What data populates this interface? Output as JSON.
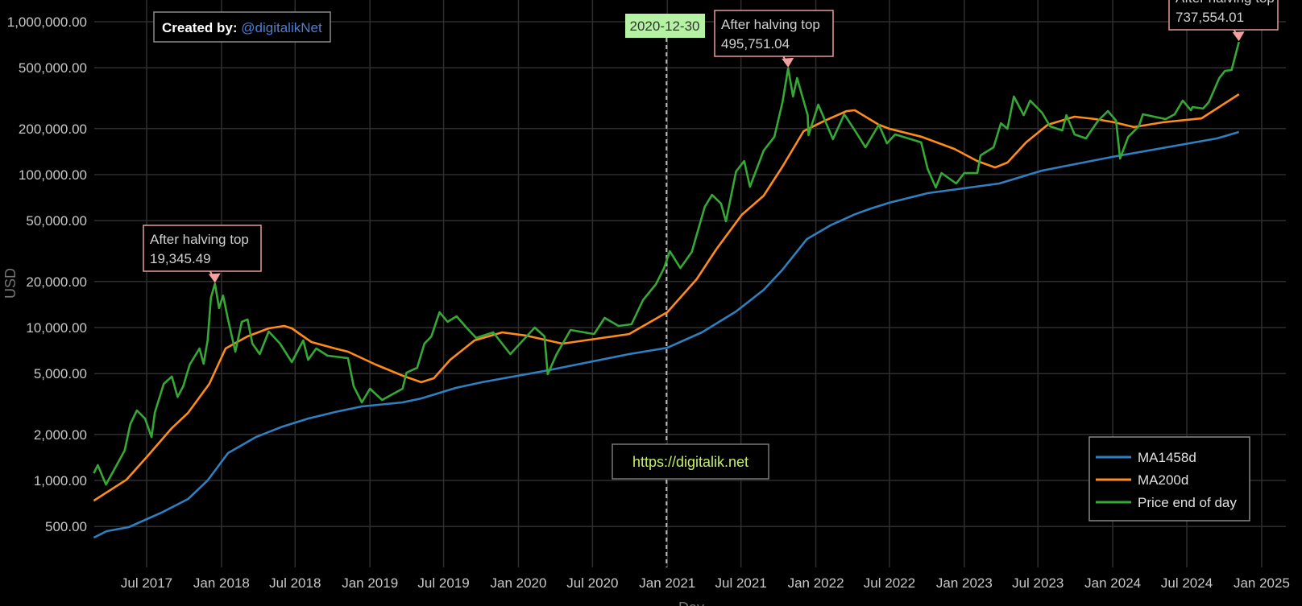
{
  "chart_data": {
    "type": "line",
    "xlabel": "Day",
    "ylabel": "USD",
    "y_scale": "log",
    "ylim": [
      400,
      1000000
    ],
    "xlim": [
      "2017-02-21",
      "2025-01-25"
    ],
    "grid": true,
    "legend_position": "bottom-right",
    "y_ticks": [
      "1,000,000.00",
      "500,000.00",
      "200,000.00",
      "100,000.00",
      "50,000.00",
      "20,000.00",
      "10,000.00",
      "5,000.00",
      "2,000.00",
      "1,000.00",
      "500.00"
    ],
    "y_tick_values": [
      1000000,
      500000,
      200000,
      100000,
      50000,
      20000,
      10000,
      5000,
      2000,
      1000,
      500
    ],
    "x_ticks": [
      "Jul 2017",
      "Jan 2018",
      "Jul 2018",
      "Jan 2019",
      "Jul 2019",
      "Jan 2020",
      "Jul 2020",
      "Jan 2021",
      "Jul 2021",
      "Jan 2022",
      "Jul 2022",
      "Jan 2023",
      "Jul 2023",
      "Jan 2024",
      "Jul 2024",
      "Jan 2025"
    ],
    "x_tick_dates": [
      "2017-07-01",
      "2018-01-01",
      "2018-07-01",
      "2019-01-01",
      "2019-07-01",
      "2020-01-01",
      "2020-07-01",
      "2021-01-01",
      "2021-07-01",
      "2022-01-01",
      "2022-07-01",
      "2023-01-01",
      "2023-07-01",
      "2024-01-01",
      "2024-07-01",
      "2025-01-01"
    ],
    "colors": {
      "MA1458d": "#2f7fc1",
      "MA200d": "#ff8c1a",
      "Price end of day": "#36a836"
    },
    "series": [
      {
        "name": "MA1458d",
        "points": [
          [
            "2017-02-21",
            423
          ],
          [
            "2017-03-25",
            466
          ],
          [
            "2017-05-18",
            495
          ],
          [
            "2017-08-06",
            615
          ],
          [
            "2017-10-11",
            757
          ],
          [
            "2017-11-28",
            1000
          ],
          [
            "2018-01-17",
            1510
          ],
          [
            "2018-03-26",
            1920
          ],
          [
            "2018-05-31",
            2250
          ],
          [
            "2018-08-02",
            2540
          ],
          [
            "2018-10-07",
            2800
          ],
          [
            "2018-12-12",
            3050
          ],
          [
            "2019-03-22",
            3240
          ],
          [
            "2019-05-07",
            3440
          ],
          [
            "2019-07-31",
            4030
          ],
          [
            "2019-10-04",
            4390
          ],
          [
            "2020-03-15",
            5260
          ],
          [
            "2020-09-29",
            6700
          ],
          [
            "2021-01-01",
            7380
          ],
          [
            "2021-03-27",
            9300
          ],
          [
            "2021-06-19",
            12740
          ],
          [
            "2021-08-26",
            17660
          ],
          [
            "2021-10-11",
            23900
          ],
          [
            "2021-12-10",
            37900
          ],
          [
            "2022-02-06",
            46600
          ],
          [
            "2022-04-07",
            55000
          ],
          [
            "2022-05-17",
            60100
          ],
          [
            "2022-07-01",
            65500
          ],
          [
            "2022-10-03",
            75700
          ],
          [
            "2023-03-28",
            87500
          ],
          [
            "2023-07-11",
            106200
          ],
          [
            "2023-12-30",
            130600
          ],
          [
            "2024-09-13",
            172500
          ],
          [
            "2024-11-06",
            190100
          ]
        ]
      },
      {
        "name": "MA200d",
        "points": [
          [
            "2017-02-21",
            738
          ],
          [
            "2017-05-12",
            1010
          ],
          [
            "2017-07-03",
            1440
          ],
          [
            "2017-09-01",
            2200
          ],
          [
            "2017-10-11",
            2770
          ],
          [
            "2017-12-02",
            4280
          ],
          [
            "2018-01-11",
            7300
          ],
          [
            "2018-03-06",
            8750
          ],
          [
            "2018-04-27",
            9880
          ],
          [
            "2018-06-04",
            10250
          ],
          [
            "2018-06-23",
            9880
          ],
          [
            "2018-08-10",
            8040
          ],
          [
            "2018-10-07",
            7300
          ],
          [
            "2018-11-08",
            6950
          ],
          [
            "2019-01-15",
            5730
          ],
          [
            "2019-03-28",
            4780
          ],
          [
            "2019-05-07",
            4390
          ],
          [
            "2019-06-07",
            4660
          ],
          [
            "2019-07-17",
            6150
          ],
          [
            "2019-09-15",
            8240
          ],
          [
            "2019-11-22",
            9300
          ],
          [
            "2020-01-21",
            8850
          ],
          [
            "2020-04-18",
            7850
          ],
          [
            "2020-07-25",
            8550
          ],
          [
            "2020-09-29",
            9070
          ],
          [
            "2021-01-01",
            12600
          ],
          [
            "2021-03-14",
            20700
          ],
          [
            "2021-05-01",
            32400
          ],
          [
            "2021-07-03",
            54600
          ],
          [
            "2021-08-26",
            72900
          ],
          [
            "2021-10-11",
            112900
          ],
          [
            "2021-12-02",
            192300
          ],
          [
            "2022-01-23",
            225400
          ],
          [
            "2022-03-18",
            260600
          ],
          [
            "2022-04-07",
            263600
          ],
          [
            "2022-06-05",
            212000
          ],
          [
            "2022-07-01",
            199500
          ],
          [
            "2022-09-19",
            176600
          ],
          [
            "2022-12-08",
            147200
          ],
          [
            "2023-02-02",
            122800
          ],
          [
            "2023-03-18",
            111400
          ],
          [
            "2023-04-17",
            120000
          ],
          [
            "2023-06-02",
            162500
          ],
          [
            "2023-07-25",
            212000
          ],
          [
            "2023-09-29",
            239300
          ],
          [
            "2023-11-20",
            230700
          ],
          [
            "2024-01-05",
            219800
          ],
          [
            "2024-02-22",
            204600
          ],
          [
            "2024-05-03",
            219800
          ],
          [
            "2024-08-06",
            233300
          ],
          [
            "2024-11-06",
            335700
          ]
        ]
      },
      {
        "name": "Price end of day",
        "points": [
          [
            "2017-02-21",
            1115
          ],
          [
            "2017-03-03",
            1260
          ],
          [
            "2017-03-23",
            940
          ],
          [
            "2017-04-14",
            1200
          ],
          [
            "2017-05-08",
            1570
          ],
          [
            "2017-05-22",
            2340
          ],
          [
            "2017-06-07",
            2870
          ],
          [
            "2017-06-27",
            2540
          ],
          [
            "2017-07-13",
            1920
          ],
          [
            "2017-07-21",
            2770
          ],
          [
            "2017-08-12",
            4280
          ],
          [
            "2017-09-01",
            4780
          ],
          [
            "2017-09-15",
            3520
          ],
          [
            "2017-09-29",
            4130
          ],
          [
            "2017-10-15",
            5730
          ],
          [
            "2017-11-08",
            7300
          ],
          [
            "2017-11-18",
            5790
          ],
          [
            "2017-11-28",
            8240
          ],
          [
            "2017-12-06",
            15700
          ],
          [
            "2017-12-16",
            19345.49
          ],
          [
            "2017-12-26",
            13400
          ],
          [
            "2018-01-05",
            16200
          ],
          [
            "2018-01-17",
            11300
          ],
          [
            "2018-02-04",
            6950
          ],
          [
            "2018-02-20",
            10900
          ],
          [
            "2018-03-06",
            11300
          ],
          [
            "2018-03-18",
            7850
          ],
          [
            "2018-04-05",
            6700
          ],
          [
            "2018-04-27",
            9420
          ],
          [
            "2018-05-25",
            7850
          ],
          [
            "2018-06-23",
            5940
          ],
          [
            "2018-07-21",
            8240
          ],
          [
            "2018-08-02",
            6150
          ],
          [
            "2018-08-22",
            7300
          ],
          [
            "2018-09-19",
            6540
          ],
          [
            "2018-11-08",
            6310
          ],
          [
            "2018-11-22",
            4130
          ],
          [
            "2018-12-12",
            3240
          ],
          [
            "2019-01-01",
            3980
          ],
          [
            "2019-01-31",
            3360
          ],
          [
            "2019-03-22",
            3980
          ],
          [
            "2019-04-01",
            5070
          ],
          [
            "2019-04-27",
            5460
          ],
          [
            "2019-05-15",
            7850
          ],
          [
            "2019-06-01",
            8750
          ],
          [
            "2019-06-21",
            12600
          ],
          [
            "2019-07-11",
            10900
          ],
          [
            "2019-08-02",
            11850
          ],
          [
            "2019-08-26",
            10000
          ],
          [
            "2019-09-19",
            8550
          ],
          [
            "2019-10-31",
            9300
          ],
          [
            "2019-12-12",
            6700
          ],
          [
            "2020-02-10",
            10000
          ],
          [
            "2020-03-05",
            8750
          ],
          [
            "2020-03-13",
            4950
          ],
          [
            "2020-04-04",
            6700
          ],
          [
            "2020-05-08",
            9640
          ],
          [
            "2020-07-05",
            9070
          ],
          [
            "2020-07-31",
            11560
          ],
          [
            "2020-09-03",
            10250
          ],
          [
            "2020-10-05",
            10500
          ],
          [
            "2020-11-02",
            15100
          ],
          [
            "2020-12-04",
            19200
          ],
          [
            "2020-12-24",
            24500
          ],
          [
            "2021-01-07",
            31600
          ],
          [
            "2021-02-02",
            24500
          ],
          [
            "2021-03-02",
            31200
          ],
          [
            "2021-04-03",
            61500
          ],
          [
            "2021-04-21",
            73800
          ],
          [
            "2021-05-13",
            64700
          ],
          [
            "2021-05-25",
            49500
          ],
          [
            "2021-06-19",
            105000
          ],
          [
            "2021-07-09",
            122800
          ],
          [
            "2021-07-23",
            83400
          ],
          [
            "2021-08-26",
            143800
          ],
          [
            "2021-09-21",
            176600
          ],
          [
            "2021-10-11",
            297600
          ],
          [
            "2021-10-25",
            495751.04
          ],
          [
            "2021-11-06",
            324300
          ],
          [
            "2021-11-16",
            428500
          ],
          [
            "2021-12-12",
            245000
          ],
          [
            "2021-12-14",
            181300
          ],
          [
            "2022-01-07",
            287100
          ],
          [
            "2022-02-12",
            170600
          ],
          [
            "2022-03-12",
            248300
          ],
          [
            "2022-04-07",
            194500
          ],
          [
            "2022-05-03",
            151000
          ],
          [
            "2022-06-05",
            212000
          ],
          [
            "2022-06-25",
            160300
          ],
          [
            "2022-07-15",
            183300
          ],
          [
            "2022-09-17",
            162500
          ],
          [
            "2022-10-03",
            109000
          ],
          [
            "2022-10-23",
            82400
          ],
          [
            "2022-11-06",
            102500
          ],
          [
            "2022-12-12",
            87500
          ],
          [
            "2023-01-01",
            102500
          ],
          [
            "2023-02-02",
            102500
          ],
          [
            "2023-02-10",
            133600
          ],
          [
            "2023-03-14",
            151000
          ],
          [
            "2023-04-01",
            217000
          ],
          [
            "2023-04-17",
            199500
          ],
          [
            "2023-05-03",
            324300
          ],
          [
            "2023-05-27",
            245000
          ],
          [
            "2023-06-12",
            305000
          ],
          [
            "2023-07-11",
            254200
          ],
          [
            "2023-07-31",
            207000
          ],
          [
            "2023-08-30",
            194500
          ],
          [
            "2023-09-09",
            245000
          ],
          [
            "2023-09-29",
            183300
          ],
          [
            "2023-10-27",
            172500
          ],
          [
            "2023-11-26",
            225400
          ],
          [
            "2023-12-20",
            260600
          ],
          [
            "2024-01-09",
            225400
          ],
          [
            "2024-01-19",
            127400
          ],
          [
            "2024-02-08",
            176600
          ],
          [
            "2024-03-05",
            207000
          ],
          [
            "2024-03-15",
            248300
          ],
          [
            "2024-05-10",
            230700
          ],
          [
            "2024-06-01",
            248300
          ],
          [
            "2024-06-21",
            305000
          ],
          [
            "2024-07-11",
            263600
          ],
          [
            "2024-07-15",
            276700
          ],
          [
            "2024-08-10",
            270300
          ],
          [
            "2024-08-24",
            297600
          ],
          [
            "2024-09-19",
            428500
          ],
          [
            "2024-10-03",
            477500
          ],
          [
            "2024-10-19",
            483500
          ],
          [
            "2024-11-06",
            737554.01
          ]
        ]
      }
    ],
    "annotations": [
      {
        "title": "After halving top",
        "value": "19,345.49",
        "date": "2017-12-16",
        "y": 19345.49
      },
      {
        "title": "After halving top",
        "value": "495,751.04",
        "date": "2021-10-25",
        "y": 495751.04
      },
      {
        "title": "After halving top",
        "value": "737,554.01",
        "date": "2024-11-06",
        "y": 737554.01
      }
    ],
    "vertical_marker": {
      "date": "2020-12-30",
      "label": "2020-12-30"
    },
    "credit": {
      "prefix": "Created by:",
      "handle": "@digitalikNet"
    },
    "watermark_url": "https://digitalik.net"
  }
}
